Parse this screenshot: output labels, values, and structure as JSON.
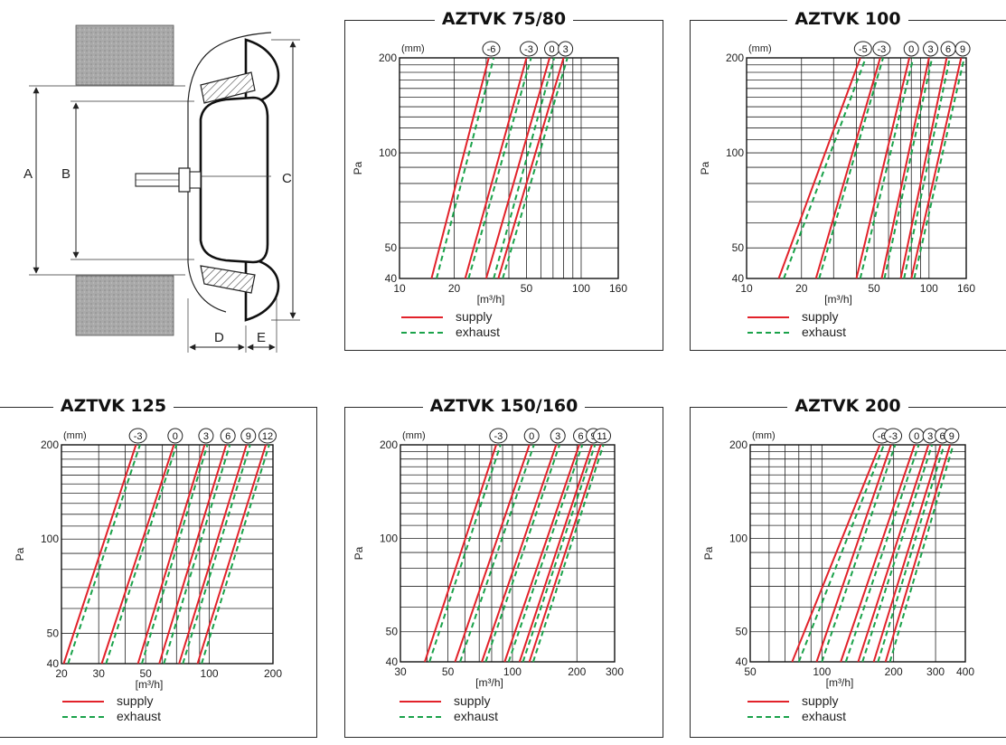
{
  "diagram": {
    "labels": {
      "a": "A",
      "b": "B",
      "c": "C",
      "d": "D",
      "e": "E"
    }
  },
  "legend": {
    "supply": "supply",
    "exhaust": "exhaust"
  },
  "colors": {
    "supply": "#e2222a",
    "exhaust": "#1aa24a"
  },
  "chart_data": [
    {
      "type": "line",
      "title": "AZTVK 75/80",
      "ylabel": "Pa",
      "xlabel": "[m³/h]",
      "setting_label": "(mm)",
      "xscale": "log",
      "yscale": "log",
      "xlim": [
        10,
        160
      ],
      "ylim": [
        40,
        200
      ],
      "xticks": [
        10,
        20,
        50,
        100,
        160
      ],
      "yticks": [
        40,
        50,
        100,
        200
      ],
      "settings": [
        "-6",
        "-3",
        "0",
        "3"
      ],
      "series": [
        {
          "name": "supply",
          "setting": "-6",
          "points": [
            [
              15,
              40
            ],
            [
              31,
              200
            ]
          ]
        },
        {
          "name": "exhaust",
          "setting": "-6",
          "points": [
            [
              16,
              40
            ],
            [
              33,
              200
            ]
          ]
        },
        {
          "name": "supply",
          "setting": "-3",
          "points": [
            [
              23,
              40
            ],
            [
              50,
              200
            ]
          ]
        },
        {
          "name": "exhaust",
          "setting": "-3",
          "points": [
            [
              24,
              40
            ],
            [
              53,
              200
            ]
          ]
        },
        {
          "name": "supply",
          "setting": "0",
          "points": [
            [
              30,
              40
            ],
            [
              67,
              200
            ]
          ]
        },
        {
          "name": "exhaust",
          "setting": "0",
          "points": [
            [
              33,
              40
            ],
            [
              71,
              200
            ]
          ]
        },
        {
          "name": "supply",
          "setting": "3",
          "points": [
            [
              35,
              40
            ],
            [
              80,
              200
            ]
          ]
        },
        {
          "name": "exhaust",
          "setting": "3",
          "points": [
            [
              37,
              40
            ],
            [
              84,
              200
            ]
          ]
        }
      ]
    },
    {
      "type": "line",
      "title": "AZTVK 100",
      "ylabel": "Pa",
      "xlabel": "[m³/h]",
      "setting_label": "(mm)",
      "xscale": "log",
      "yscale": "log",
      "xlim": [
        10,
        160
      ],
      "ylim": [
        40,
        200
      ],
      "xticks": [
        10,
        20,
        50,
        100,
        160
      ],
      "yticks": [
        40,
        50,
        100,
        200
      ],
      "settings": [
        "-5",
        "-3",
        "0",
        "3",
        "6",
        "9"
      ],
      "series": [
        {
          "name": "supply",
          "setting": "-5",
          "points": [
            [
              15,
              40
            ],
            [
              42,
              200
            ]
          ]
        },
        {
          "name": "exhaust",
          "setting": "-5",
          "points": [
            [
              16,
              40
            ],
            [
              45,
              200
            ]
          ]
        },
        {
          "name": "supply",
          "setting": "-3",
          "points": [
            [
              24,
              40
            ],
            [
              54,
              200
            ]
          ]
        },
        {
          "name": "exhaust",
          "setting": "-3",
          "points": [
            [
              25,
              40
            ],
            [
              56,
              200
            ]
          ]
        },
        {
          "name": "supply",
          "setting": "0",
          "points": [
            [
              40,
              40
            ],
            [
              78,
              200
            ]
          ]
        },
        {
          "name": "exhaust",
          "setting": "0",
          "points": [
            [
              42,
              40
            ],
            [
              82,
              200
            ]
          ]
        },
        {
          "name": "supply",
          "setting": "3",
          "points": [
            [
              55,
              40
            ],
            [
              100,
              200
            ]
          ]
        },
        {
          "name": "exhaust",
          "setting": "3",
          "points": [
            [
              57,
              40
            ],
            [
              104,
              200
            ]
          ]
        },
        {
          "name": "supply",
          "setting": "6",
          "points": [
            [
              70,
              40
            ],
            [
              125,
              200
            ]
          ]
        },
        {
          "name": "exhaust",
          "setting": "6",
          "points": [
            [
              73,
              40
            ],
            [
              130,
              200
            ]
          ]
        },
        {
          "name": "supply",
          "setting": "9",
          "points": [
            [
              80,
              40
            ],
            [
              150,
              200
            ]
          ]
        },
        {
          "name": "exhaust",
          "setting": "9",
          "points": [
            [
              83,
              40
            ],
            [
              156,
              200
            ]
          ]
        }
      ]
    },
    {
      "type": "line",
      "title": "AZTVK 125",
      "ylabel": "Pa",
      "xlabel": "[m³/h]",
      "setting_label": "(mm)",
      "xscale": "log",
      "yscale": "log",
      "xlim": [
        20,
        200
      ],
      "ylim": [
        40,
        200
      ],
      "xticks": [
        20,
        30,
        50,
        100,
        200
      ],
      "yticks": [
        40,
        50,
        100,
        200
      ],
      "settings": [
        "-3",
        "0",
        "3",
        "6",
        "9",
        "12"
      ],
      "series": [
        {
          "name": "supply",
          "setting": "-3",
          "points": [
            [
              20.5,
              40
            ],
            [
              45,
              200
            ]
          ]
        },
        {
          "name": "exhaust",
          "setting": "-3",
          "points": [
            [
              21.5,
              40
            ],
            [
              47,
              200
            ]
          ]
        },
        {
          "name": "supply",
          "setting": "0",
          "points": [
            [
              31,
              40
            ],
            [
              68,
              200
            ]
          ]
        },
        {
          "name": "exhaust",
          "setting": "0",
          "points": [
            [
              32.5,
              40
            ],
            [
              70,
              200
            ]
          ]
        },
        {
          "name": "supply",
          "setting": "3",
          "points": [
            [
              46,
              40
            ],
            [
              95,
              200
            ]
          ]
        },
        {
          "name": "exhaust",
          "setting": "3",
          "points": [
            [
              48,
              40
            ],
            [
              98,
              200
            ]
          ]
        },
        {
          "name": "supply",
          "setting": "6",
          "points": [
            [
              58,
              40
            ],
            [
              120,
              200
            ]
          ]
        },
        {
          "name": "exhaust",
          "setting": "6",
          "points": [
            [
              61,
              40
            ],
            [
              125,
              200
            ]
          ]
        },
        {
          "name": "supply",
          "setting": "9",
          "points": [
            [
              72,
              40
            ],
            [
              150,
              200
            ]
          ]
        },
        {
          "name": "exhaust",
          "setting": "9",
          "points": [
            [
              75,
              40
            ],
            [
              156,
              200
            ]
          ]
        },
        {
          "name": "supply",
          "setting": "12",
          "points": [
            [
              88,
              40
            ],
            [
              185,
              200
            ]
          ]
        },
        {
          "name": "exhaust",
          "setting": "12",
          "points": [
            [
              92,
              40
            ],
            [
              192,
              200
            ]
          ]
        }
      ]
    },
    {
      "type": "line",
      "title": "AZTVK 150/160",
      "ylabel": "Pa",
      "xlabel": "[m³/h]",
      "setting_label": "(mm)",
      "xscale": "log",
      "yscale": "log",
      "xlim": [
        30,
        300
      ],
      "ylim": [
        40,
        200
      ],
      "xticks": [
        30,
        50,
        100,
        200,
        300
      ],
      "yticks": [
        40,
        50,
        100,
        200
      ],
      "settings": [
        "-3",
        "0",
        "3",
        "6",
        "9",
        "11"
      ],
      "series": [
        {
          "name": "supply",
          "setting": "-3",
          "points": [
            [
              39,
              40
            ],
            [
              84,
              200
            ]
          ]
        },
        {
          "name": "exhaust",
          "setting": "-3",
          "points": [
            [
              41,
              40
            ],
            [
              88,
              200
            ]
          ]
        },
        {
          "name": "supply",
          "setting": "0",
          "points": [
            [
              54,
              40
            ],
            [
              120,
              200
            ]
          ]
        },
        {
          "name": "exhaust",
          "setting": "0",
          "points": [
            [
              57,
              40
            ],
            [
              126,
              200
            ]
          ]
        },
        {
          "name": "supply",
          "setting": "3",
          "points": [
            [
              72,
              40
            ],
            [
              160,
              200
            ]
          ]
        },
        {
          "name": "exhaust",
          "setting": "3",
          "points": [
            [
              75,
              40
            ],
            [
              166,
              200
            ]
          ]
        },
        {
          "name": "supply",
          "setting": "6",
          "points": [
            [
              92,
              40
            ],
            [
              205,
              200
            ]
          ]
        },
        {
          "name": "exhaust",
          "setting": "6",
          "points": [
            [
              96,
              40
            ],
            [
              212,
              200
            ]
          ]
        },
        {
          "name": "supply",
          "setting": "9",
          "points": [
            [
              108,
              40
            ],
            [
              235,
              200
            ]
          ]
        },
        {
          "name": "exhaust",
          "setting": "9",
          "points": [
            [
              112,
              40
            ],
            [
              243,
              200
            ]
          ]
        },
        {
          "name": "supply",
          "setting": "11",
          "points": [
            [
              120,
              40
            ],
            [
              258,
              200
            ]
          ]
        },
        {
          "name": "exhaust",
          "setting": "11",
          "points": [
            [
              125,
              40
            ],
            [
              266,
              200
            ]
          ]
        }
      ]
    },
    {
      "type": "line",
      "title": "AZTVK 200",
      "ylabel": "Pa",
      "xlabel": "[m³/h]",
      "setting_label": "(mm)",
      "xscale": "log",
      "yscale": "log",
      "xlim": [
        50,
        400
      ],
      "ylim": [
        40,
        200
      ],
      "xticks": [
        50,
        100,
        200,
        300,
        400
      ],
      "yticks": [
        40,
        50,
        100,
        200
      ],
      "settings": [
        "-6",
        "-3",
        "0",
        "3",
        "6",
        "9"
      ],
      "series": [
        {
          "name": "supply",
          "setting": "-6",
          "points": [
            [
              75,
              40
            ],
            [
              175,
              200
            ]
          ]
        },
        {
          "name": "exhaust",
          "setting": "-6",
          "points": [
            [
              80,
              40
            ],
            [
              182,
              200
            ]
          ]
        },
        {
          "name": "supply",
          "setting": "-3",
          "points": [
            [
              95,
              40
            ],
            [
              195,
              200
            ]
          ]
        },
        {
          "name": "exhaust",
          "setting": "-3",
          "points": [
            [
              100,
              40
            ],
            [
              203,
              200
            ]
          ]
        },
        {
          "name": "supply",
          "setting": "0",
          "points": [
            [
              120,
              40
            ],
            [
              245,
              200
            ]
          ]
        },
        {
          "name": "exhaust",
          "setting": "0",
          "points": [
            [
              126,
              40
            ],
            [
              255,
              200
            ]
          ]
        },
        {
          "name": "supply",
          "setting": "3",
          "points": [
            [
              142,
              40
            ],
            [
              280,
              200
            ]
          ]
        },
        {
          "name": "exhaust",
          "setting": "3",
          "points": [
            [
              148,
              40
            ],
            [
              290,
              200
            ]
          ]
        },
        {
          "name": "supply",
          "setting": "6",
          "points": [
            [
              165,
              40
            ],
            [
              315,
              200
            ]
          ]
        },
        {
          "name": "exhaust",
          "setting": "6",
          "points": [
            [
              172,
              40
            ],
            [
              326,
              200
            ]
          ]
        },
        {
          "name": "supply",
          "setting": "9",
          "points": [
            [
              185,
              40
            ],
            [
              345,
              200
            ]
          ]
        },
        {
          "name": "exhaust",
          "setting": "9",
          "points": [
            [
              193,
              40
            ],
            [
              356,
              200
            ]
          ]
        }
      ]
    }
  ]
}
